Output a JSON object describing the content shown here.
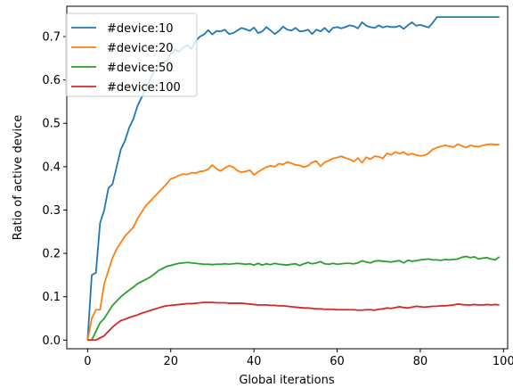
{
  "chart_data": {
    "type": "line",
    "xlabel": "Global iterations",
    "ylabel": "Ratio of active device",
    "xlim": [
      -5,
      101
    ],
    "ylim": [
      -0.02,
      0.77
    ],
    "xticks": [
      0,
      20,
      40,
      60,
      80,
      100
    ],
    "xtick_labels": [
      "0",
      "20",
      "40",
      "60",
      "80",
      "100"
    ],
    "yticks": [
      0.0,
      0.1,
      0.2,
      0.3,
      0.4,
      0.5,
      0.6,
      0.7
    ],
    "ytick_labels": [
      "0.0",
      "0.1",
      "0.2",
      "0.3",
      "0.4",
      "0.5",
      "0.6",
      "0.7"
    ],
    "grid": false,
    "legend": "top-left",
    "x": [
      0,
      1,
      2,
      3,
      4,
      5,
      6,
      7,
      8,
      9,
      10,
      11,
      12,
      13,
      14,
      15,
      16,
      17,
      18,
      19,
      20,
      21,
      22,
      23,
      24,
      25,
      26,
      27,
      28,
      29,
      30,
      31,
      32,
      33,
      34,
      35,
      36,
      37,
      38,
      39,
      40,
      41,
      42,
      43,
      44,
      45,
      46,
      47,
      48,
      49,
      50,
      51,
      52,
      53,
      54,
      55,
      56,
      57,
      58,
      59,
      60,
      61,
      62,
      63,
      64,
      65,
      66,
      67,
      68,
      69,
      70,
      71,
      72,
      73,
      74,
      75,
      76,
      77,
      78,
      79,
      80,
      81,
      82,
      83,
      84,
      85,
      86,
      87,
      88,
      89,
      90,
      91,
      92,
      93,
      94,
      95,
      96,
      97,
      98,
      99
    ],
    "series": [
      {
        "name": "#device:10",
        "color": "#1f77b4",
        "values": [
          0.0,
          0.15,
          0.155,
          0.27,
          0.3,
          0.35,
          0.36,
          0.4,
          0.44,
          0.46,
          0.49,
          0.51,
          0.54,
          0.56,
          0.58,
          0.6,
          0.62,
          0.63,
          0.64,
          0.645,
          0.66,
          0.67,
          0.665,
          0.675,
          0.68,
          0.672,
          0.69,
          0.7,
          0.705,
          0.715,
          0.705,
          0.713,
          0.712,
          0.716,
          0.706,
          0.708,
          0.714,
          0.72,
          0.717,
          0.713,
          0.721,
          0.708,
          0.712,
          0.722,
          0.714,
          0.706,
          0.713,
          0.723,
          0.716,
          0.714,
          0.72,
          0.712,
          0.713,
          0.716,
          0.706,
          0.716,
          0.712,
          0.72,
          0.71,
          0.72,
          0.722,
          0.719,
          0.722,
          0.726,
          0.724,
          0.719,
          0.733,
          0.725,
          0.722,
          0.72,
          0.726,
          0.721,
          0.724,
          0.722,
          0.722,
          0.725,
          0.718,
          0.726,
          0.733,
          0.725,
          0.727,
          0.724,
          0.721,
          0.732,
          0.745,
          0.745,
          0.745,
          0.745,
          0.745,
          0.745,
          0.745,
          0.745,
          0.745,
          0.745,
          0.745,
          0.745,
          0.745,
          0.745,
          0.745,
          0.745
        ]
      },
      {
        "name": "#device:20",
        "color": "#ff7f0e",
        "values": [
          0.0,
          0.05,
          0.07,
          0.07,
          0.13,
          0.16,
          0.19,
          0.21,
          0.225,
          0.24,
          0.25,
          0.26,
          0.28,
          0.295,
          0.31,
          0.32,
          0.33,
          0.34,
          0.35,
          0.36,
          0.372,
          0.375,
          0.38,
          0.383,
          0.382,
          0.386,
          0.385,
          0.389,
          0.39,
          0.394,
          0.404,
          0.395,
          0.39,
          0.397,
          0.402,
          0.399,
          0.391,
          0.387,
          0.389,
          0.392,
          0.381,
          0.388,
          0.394,
          0.399,
          0.402,
          0.4,
          0.407,
          0.405,
          0.411,
          0.408,
          0.404,
          0.403,
          0.399,
          0.402,
          0.41,
          0.413,
          0.401,
          0.41,
          0.414,
          0.419,
          0.421,
          0.424,
          0.42,
          0.417,
          0.412,
          0.42,
          0.409,
          0.422,
          0.417,
          0.424,
          0.423,
          0.419,
          0.431,
          0.427,
          0.434,
          0.43,
          0.434,
          0.427,
          0.43,
          0.427,
          0.425,
          0.426,
          0.431,
          0.44,
          0.444,
          0.447,
          0.449,
          0.447,
          0.445,
          0.452,
          0.448,
          0.444,
          0.449,
          0.447,
          0.446,
          0.449,
          0.451,
          0.452,
          0.451,
          0.451
        ]
      },
      {
        "name": "#device:50",
        "color": "#2ca02c",
        "values": [
          0.0,
          0.0,
          0.02,
          0.04,
          0.05,
          0.065,
          0.08,
          0.09,
          0.1,
          0.108,
          0.115,
          0.122,
          0.13,
          0.135,
          0.14,
          0.145,
          0.152,
          0.16,
          0.165,
          0.17,
          0.172,
          0.175,
          0.177,
          0.178,
          0.179,
          0.178,
          0.177,
          0.176,
          0.175,
          0.175,
          0.174,
          0.175,
          0.175,
          0.176,
          0.175,
          0.176,
          0.177,
          0.176,
          0.175,
          0.176,
          0.173,
          0.177,
          0.173,
          0.176,
          0.174,
          0.177,
          0.175,
          0.174,
          0.173,
          0.175,
          0.176,
          0.172,
          0.176,
          0.179,
          0.176,
          0.178,
          0.181,
          0.176,
          0.175,
          0.177,
          0.175,
          0.176,
          0.177,
          0.177,
          0.176,
          0.178,
          0.183,
          0.18,
          0.178,
          0.182,
          0.183,
          0.182,
          0.181,
          0.18,
          0.182,
          0.183,
          0.178,
          0.184,
          0.182,
          0.183,
          0.185,
          0.186,
          0.187,
          0.185,
          0.185,
          0.184,
          0.186,
          0.185,
          0.186,
          0.187,
          0.191,
          0.193,
          0.19,
          0.192,
          0.187,
          0.189,
          0.19,
          0.187,
          0.185,
          0.192
        ]
      },
      {
        "name": "#device:100",
        "color": "#d62728",
        "values": [
          0.0,
          0.0,
          0.0,
          0.005,
          0.01,
          0.02,
          0.03,
          0.038,
          0.045,
          0.048,
          0.052,
          0.055,
          0.058,
          0.062,
          0.065,
          0.068,
          0.071,
          0.074,
          0.077,
          0.079,
          0.08,
          0.081,
          0.082,
          0.083,
          0.084,
          0.084,
          0.085,
          0.086,
          0.087,
          0.087,
          0.087,
          0.086,
          0.086,
          0.086,
          0.085,
          0.085,
          0.085,
          0.085,
          0.084,
          0.083,
          0.082,
          0.081,
          0.081,
          0.081,
          0.08,
          0.08,
          0.079,
          0.079,
          0.078,
          0.077,
          0.076,
          0.075,
          0.074,
          0.074,
          0.073,
          0.072,
          0.072,
          0.071,
          0.071,
          0.071,
          0.07,
          0.07,
          0.07,
          0.07,
          0.07,
          0.069,
          0.069,
          0.07,
          0.07,
          0.069,
          0.071,
          0.072,
          0.074,
          0.073,
          0.075,
          0.077,
          0.075,
          0.074,
          0.076,
          0.078,
          0.077,
          0.076,
          0.077,
          0.078,
          0.078,
          0.079,
          0.079,
          0.08,
          0.081,
          0.083,
          0.082,
          0.081,
          0.081,
          0.082,
          0.081,
          0.081,
          0.082,
          0.081,
          0.082,
          0.081
        ]
      }
    ]
  }
}
